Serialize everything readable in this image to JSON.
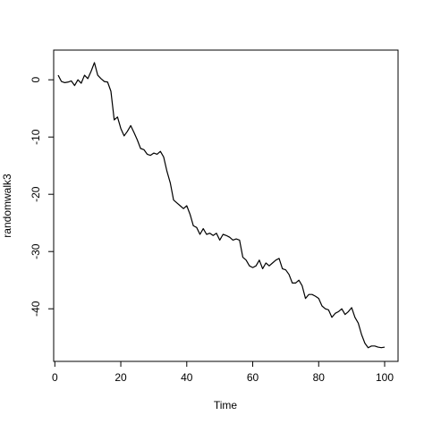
{
  "chart_data": {
    "type": "line",
    "xlabel": "Time",
    "ylabel": "randomwalk3",
    "xlim": [
      1,
      100
    ],
    "ylim": [
      -47,
      3
    ],
    "xticks": [
      0,
      20,
      40,
      60,
      80,
      100
    ],
    "yticks": [
      0,
      -10,
      -20,
      -30,
      -40
    ],
    "grid": false,
    "x": [
      1,
      2,
      3,
      4,
      5,
      6,
      7,
      8,
      9,
      10,
      11,
      12,
      13,
      14,
      15,
      16,
      17,
      18,
      19,
      20,
      21,
      22,
      23,
      24,
      25,
      26,
      27,
      28,
      29,
      30,
      31,
      32,
      33,
      34,
      35,
      36,
      37,
      38,
      39,
      40,
      41,
      42,
      43,
      44,
      45,
      46,
      47,
      48,
      49,
      50,
      51,
      52,
      53,
      54,
      55,
      56,
      57,
      58,
      59,
      60,
      61,
      62,
      63,
      64,
      65,
      66,
      67,
      68,
      69,
      70,
      71,
      72,
      73,
      74,
      75,
      76,
      77,
      78,
      79,
      80,
      81,
      82,
      83,
      84,
      85,
      86,
      87,
      88,
      89,
      90,
      91,
      92,
      93,
      94,
      95,
      96,
      97,
      98,
      99,
      100
    ],
    "series": [
      {
        "values": [
          0.8,
          -0.3,
          -0.5,
          -0.4,
          -0.2,
          -1.0,
          0.0,
          -0.6,
          0.8,
          0.2,
          1.5,
          3.0,
          0.8,
          0.2,
          -0.3,
          -0.4,
          -2.0,
          -7.0,
          -6.5,
          -8.5,
          -9.8,
          -9.0,
          -8.0,
          -9.2,
          -10.5,
          -12.0,
          -12.2,
          -13.0,
          -13.2,
          -12.8,
          -13.0,
          -12.5,
          -13.5,
          -16.0,
          -18.0,
          -21.0,
          -21.5,
          -22.0,
          -22.5,
          -22.0,
          -23.5,
          -25.5,
          -25.8,
          -27.0,
          -26.0,
          -27.0,
          -26.8,
          -27.2,
          -26.8,
          -28.0,
          -27.0,
          -27.2,
          -27.5,
          -28.0,
          -27.8,
          -28.0,
          -31.0,
          -31.5,
          -32.5,
          -32.8,
          -32.5,
          -31.5,
          -33.0,
          -32.0,
          -32.5,
          -32.0,
          -31.5,
          -31.2,
          -33.0,
          -33.2,
          -34.0,
          -35.5,
          -35.5,
          -35.0,
          -36.0,
          -38.2,
          -37.5,
          -37.5,
          -37.8,
          -38.2,
          -39.5,
          -40.0,
          -40.2,
          -41.5,
          -40.8,
          -40.5,
          -40.0,
          -41.0,
          -40.5,
          -39.8,
          -41.5,
          -42.5,
          -44.5,
          -46.0,
          -46.8,
          -46.5,
          -46.5,
          -46.7,
          -46.8,
          -46.7
        ]
      }
    ]
  }
}
